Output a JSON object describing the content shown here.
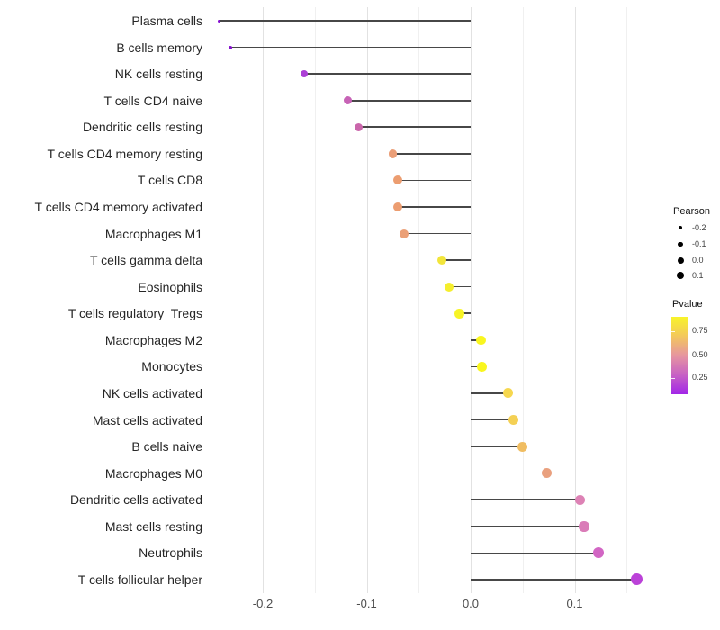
{
  "chart_data": {
    "type": "lollipop",
    "title": "",
    "xlabel": "",
    "ylabel": "",
    "xlim": [
      -0.265,
      0.18
    ],
    "x_ticks": [
      {
        "value": -0.2,
        "label": "-0.2"
      },
      {
        "value": -0.1,
        "label": "-0.1"
      },
      {
        "value": 0.0,
        "label": "0.0"
      },
      {
        "value": 0.1,
        "label": "0.1"
      }
    ],
    "minor_gridlines": [
      -0.25,
      -0.15,
      -0.05,
      0.05,
      0.15
    ],
    "legend_position": "right",
    "grid": "vertical-only",
    "points": [
      {
        "label": "Plasma cells",
        "pearson": -0.242,
        "color": "#850FD0",
        "size": 3
      },
      {
        "label": "B cells memory",
        "pearson": -0.231,
        "color": "#8512CC",
        "size": 4
      },
      {
        "label": "NK cells resting",
        "pearson": -0.16,
        "color": "#AC3FD6",
        "size": 8.5
      },
      {
        "label": "T cells CD4 naive",
        "pearson": -0.118,
        "color": "#C763B6",
        "size": 9
      },
      {
        "label": "Dendritic cells resting",
        "pearson": -0.108,
        "color": "#CA66AB",
        "size": 9
      },
      {
        "label": "T cells CD4 memory resting",
        "pearson": -0.075,
        "color": "#EB9F78",
        "size": 9.5
      },
      {
        "label": "T cells CD8",
        "pearson": -0.07,
        "color": "#EC9D70",
        "size": 10
      },
      {
        "label": "T cells CD4 memory activated",
        "pearson": -0.07,
        "color": "#EC9D70",
        "size": 10
      },
      {
        "label": "Macrophages M1",
        "pearson": -0.064,
        "color": "#EBA077",
        "size": 10
      },
      {
        "label": "T cells gamma delta",
        "pearson": -0.028,
        "color": "#F2E53A",
        "size": 10
      },
      {
        "label": "Eosinophils",
        "pearson": -0.021,
        "color": "#F5EE2D",
        "size": 10
      },
      {
        "label": "T cells regulatory  Tregs",
        "pearson": -0.011,
        "color": "#F7F426",
        "size": 10.5
      },
      {
        "label": "Macrophages M2",
        "pearson": 0.01,
        "color": "#F9F61F",
        "size": 10.5
      },
      {
        "label": "Monocytes",
        "pearson": 0.011,
        "color": "#F9F61F",
        "size": 10.5
      },
      {
        "label": "NK cells activated",
        "pearson": 0.036,
        "color": "#F6D74E",
        "size": 11
      },
      {
        "label": "Mast cells activated",
        "pearson": 0.041,
        "color": "#F4D054",
        "size": 11
      },
      {
        "label": "B cells naive",
        "pearson": 0.05,
        "color": "#F0BD62",
        "size": 11
      },
      {
        "label": "Macrophages M0",
        "pearson": 0.073,
        "color": "#E9A07E",
        "size": 11.5
      },
      {
        "label": "Dendritic cells activated",
        "pearson": 0.105,
        "color": "#DD82B5",
        "size": 11.5
      },
      {
        "label": "Mast cells resting",
        "pearson": 0.109,
        "color": "#DA7CB8",
        "size": 11.5
      },
      {
        "label": "Neutrophils",
        "pearson": 0.123,
        "color": "#D266C4",
        "size": 12
      },
      {
        "label": "T cells follicular helper",
        "pearson": 0.16,
        "color": "#BB42D8",
        "size": 13
      }
    ]
  },
  "size_legend": {
    "title": "Pearson",
    "entries": [
      {
        "label": "-0.2",
        "diameter": 4
      },
      {
        "label": "-0.1",
        "diameter": 5.5
      },
      {
        "label": "0.0",
        "diameter": 7
      },
      {
        "label": "0.1",
        "diameter": 8.5
      }
    ]
  },
  "color_legend": {
    "title": "Pvalue",
    "gradient_bottom_color": "#A226E8",
    "gradient_top_color": "#F8F42A",
    "ticks": [
      {
        "label": "0.75",
        "frac_from_top": 0.186
      },
      {
        "label": "0.50",
        "frac_from_top": 0.497
      },
      {
        "label": "0.25",
        "frac_from_top": 0.786
      }
    ]
  }
}
